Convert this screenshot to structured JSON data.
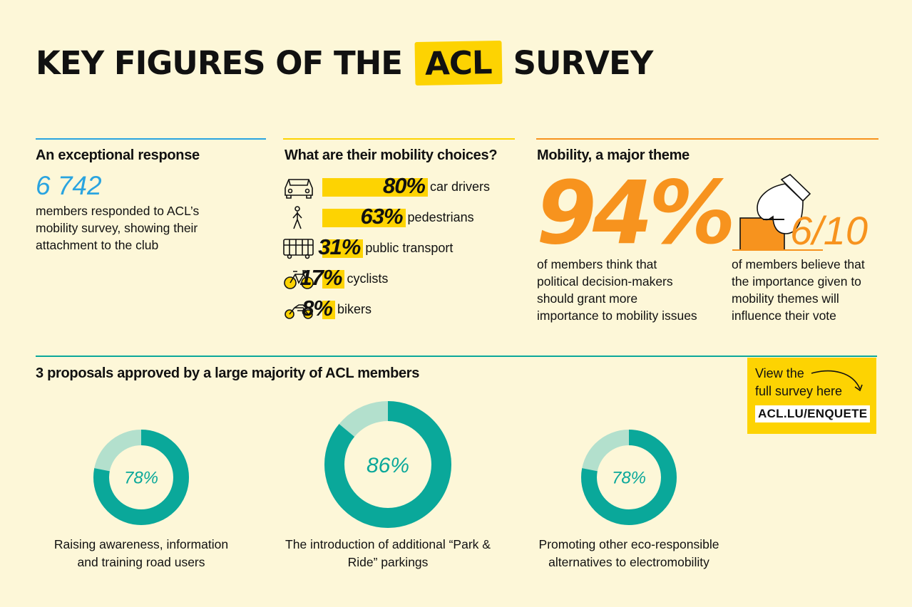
{
  "title": {
    "prefix": "KEY FIGURES OF THE",
    "highlight": "ACL",
    "suffix": "SURVEY"
  },
  "colors": {
    "yellow": "#fdd302",
    "orange": "#f7931e",
    "blue": "#2aa4e0",
    "teal": "#0aa89a",
    "teal_light": "#b3e0cd",
    "background": "#fdf7d8"
  },
  "response": {
    "heading": "An exceptional response",
    "count": "6 742",
    "description": "members responded to ACL’s mobility survey, showing their attachment to the club"
  },
  "mobility": {
    "heading": "What are their mobility choices?",
    "items": [
      {
        "icon": "car-icon",
        "pct": "80%",
        "value": 80,
        "label": "car drivers"
      },
      {
        "icon": "pedestrian-icon",
        "pct": "63%",
        "value": 63,
        "label": "pedestrians"
      },
      {
        "icon": "bus-icon",
        "pct": "31%",
        "value": 31,
        "label": "public transport"
      },
      {
        "icon": "bicycle-icon",
        "pct": "17%",
        "value": 17,
        "label": "cyclists"
      },
      {
        "icon": "motorbike-icon",
        "pct": "8%",
        "value": 8,
        "label": "bikers"
      }
    ]
  },
  "theme": {
    "heading": "Mobility, a major theme",
    "big_pct": "94%",
    "big_desc": "of members think that political decision-makers should grant more importance to mobility issues",
    "ratio": "6/10",
    "ratio_desc": "of members believe that the importance given to mobility themes will influence their vote"
  },
  "proposals": {
    "heading": "3 proposals approved by a large majority of ACL members",
    "items": [
      {
        "pct": "78%",
        "value": 78,
        "label": "Raising awareness, information and training road users"
      },
      {
        "pct": "86%",
        "value": 86,
        "label": "The introduction of additional “Park & Ride” parkings"
      },
      {
        "pct": "78%",
        "value": 78,
        "label": "Promoting other eco-responsible alternatives to electromobility"
      }
    ]
  },
  "cta": {
    "line1": "View the",
    "line2": "full survey here",
    "url": "ACL.LU/ENQUETE"
  },
  "chart_data": [
    {
      "type": "bar",
      "title": "What are their mobility choices?",
      "categories": [
        "car drivers",
        "pedestrians",
        "public transport",
        "cyclists",
        "bikers"
      ],
      "values": [
        80,
        63,
        31,
        17,
        8
      ],
      "ylim": [
        0,
        100
      ]
    },
    {
      "type": "pie",
      "title": "3 proposals approved by a large majority of ACL members",
      "categories": [
        "Raising awareness, information and training road users",
        "The introduction of additional “Park & Ride” parkings",
        "Promoting other eco-responsible alternatives to electromobility"
      ],
      "values": [
        78,
        86,
        78
      ]
    }
  ]
}
